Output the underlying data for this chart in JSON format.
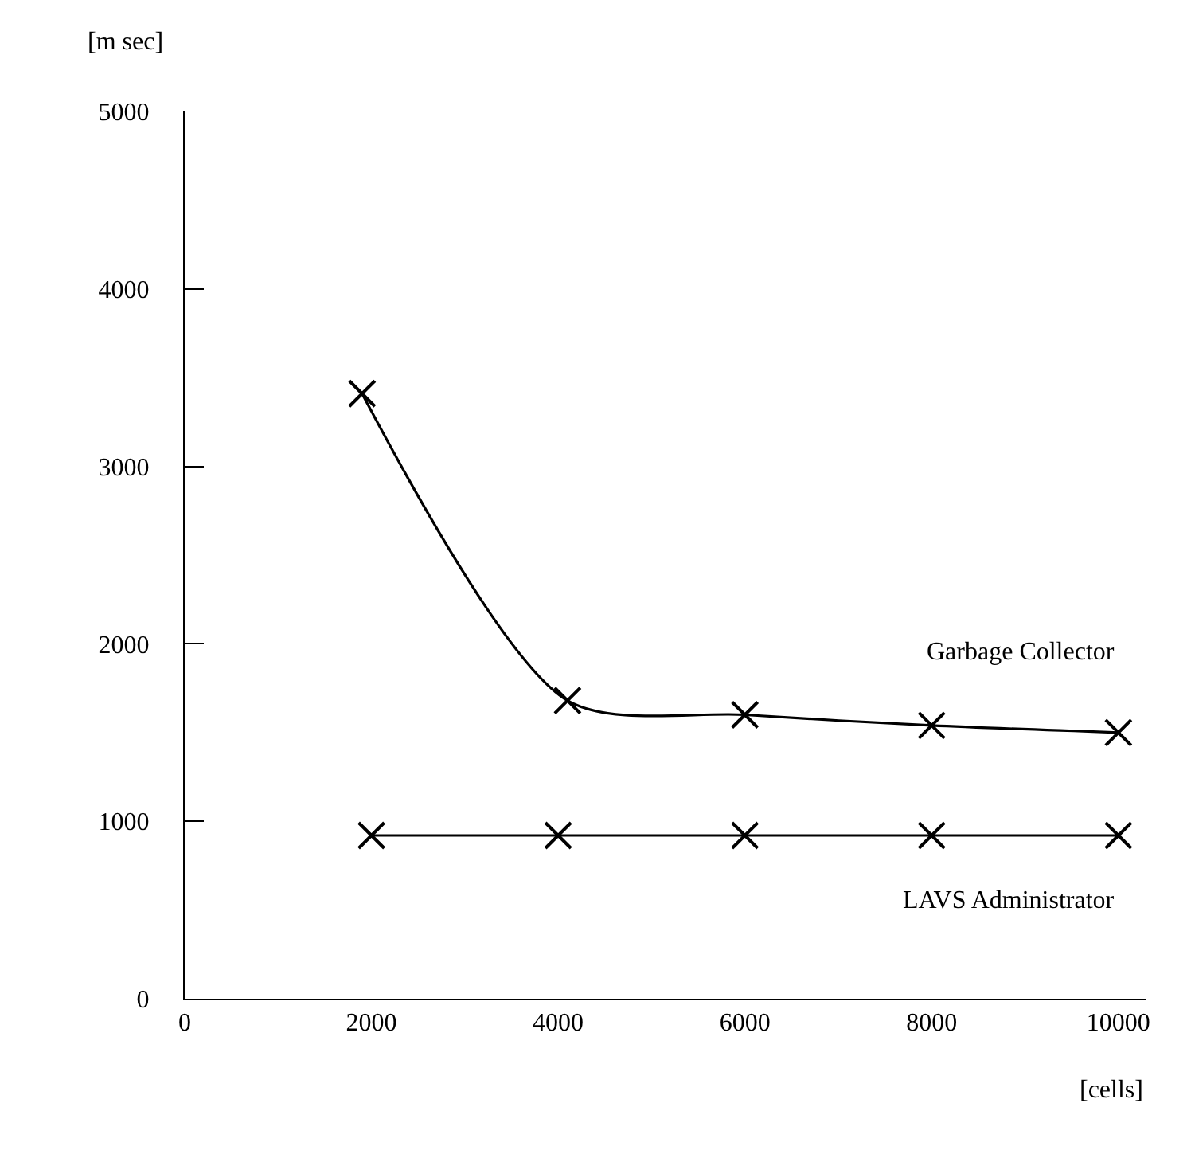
{
  "chart_data": {
    "type": "line",
    "xlabel": "[cells]",
    "ylabel": "[m sec]",
    "xlim": [
      0,
      10300
    ],
    "ylim": [
      0,
      5000
    ],
    "xticks": [
      0,
      2000,
      4000,
      6000,
      8000,
      10000
    ],
    "yticks": [
      0,
      1000,
      2000,
      3000,
      4000,
      5000
    ],
    "grid": false,
    "legend": false,
    "marker": "cross",
    "line_style": "solid",
    "series": [
      {
        "name": "Garbage Collector",
        "color": "#000000",
        "x": [
          1900,
          4100,
          6000,
          8000,
          10000
        ],
        "values": [
          3410,
          1680,
          1600,
          1540,
          1500
        ]
      },
      {
        "name": "LAVS Administrator",
        "color": "#000000",
        "x": [
          2000,
          4000,
          6000,
          8000,
          10000
        ],
        "values": [
          920,
          920,
          920,
          920,
          920
        ]
      }
    ]
  }
}
